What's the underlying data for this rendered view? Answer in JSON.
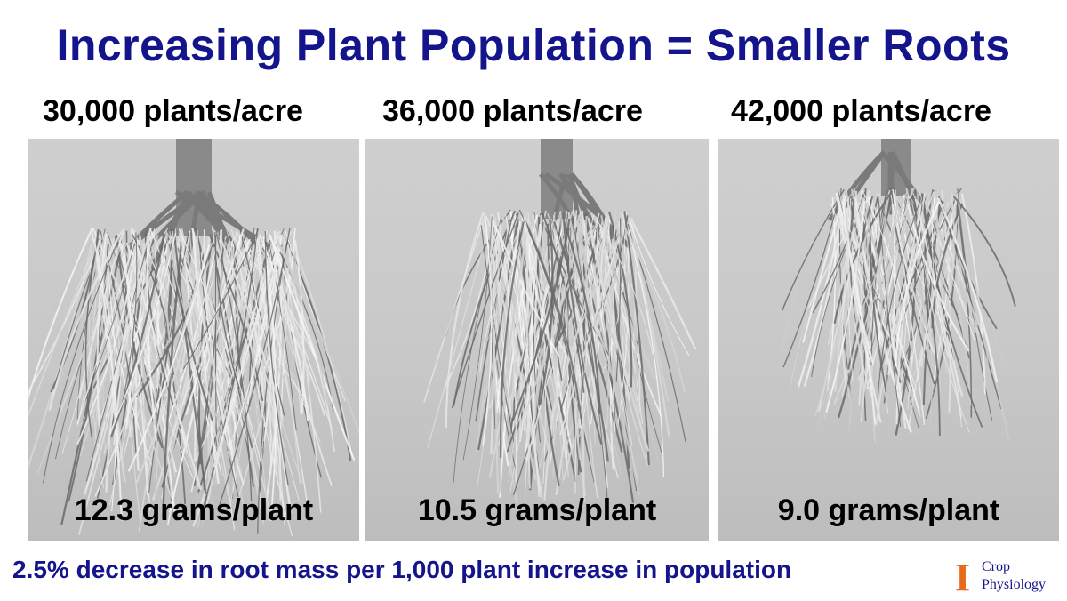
{
  "title": "Increasing Plant Population = Smaller Roots",
  "panels": [
    {
      "population": "30,000 plants/acre",
      "mass": "12.3 grams/plant"
    },
    {
      "population": "36,000 plants/acre",
      "mass": "10.5 grams/plant"
    },
    {
      "population": "42,000 plants/acre",
      "mass": "9.0 grams/plant"
    }
  ],
  "footer": "2.5% decrease in root mass per 1,000 plant increase in population",
  "logo": {
    "letter": "I",
    "line1": "Crop",
    "line2": "Physiology",
    "letter_color": "#e86a1c"
  },
  "colors": {
    "title": "#14148c",
    "footer": "#14148c",
    "photo_bg": "#c8c8c8"
  }
}
